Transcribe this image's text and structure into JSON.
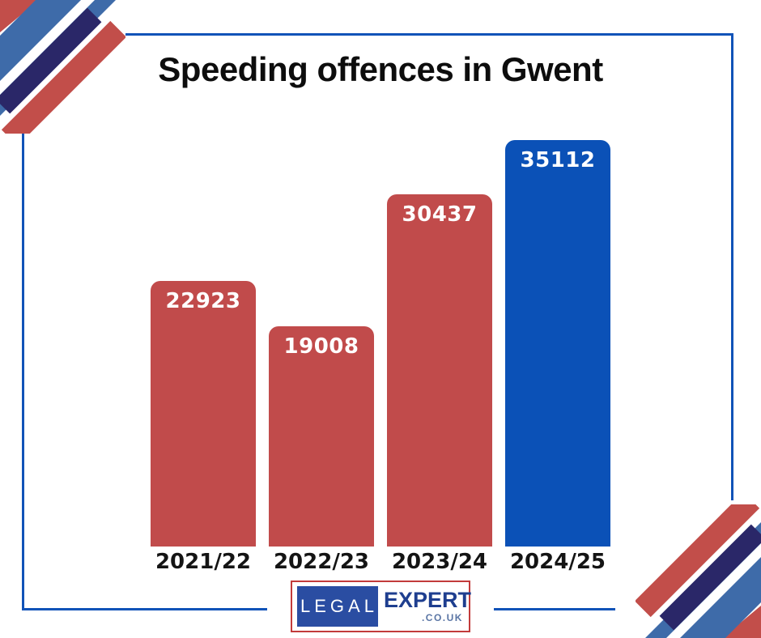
{
  "title": "Speeding offences in Gwent",
  "chart_data": {
    "type": "bar",
    "title": "Speeding offences in Gwent",
    "categories": [
      "2021/22",
      "2022/23",
      "2023/24",
      "2024/25"
    ],
    "values": [
      22923,
      19008,
      30437,
      35112
    ],
    "bar_colors": [
      "#c14b4b",
      "#c14b4b",
      "#c14b4b",
      "#0b51b7"
    ],
    "value_labels": [
      "22923",
      "19008",
      "30437",
      "35112"
    ],
    "value_label_position": "inside-top",
    "xlabel": "",
    "ylabel": "",
    "ylim": [
      0,
      35112
    ],
    "grid": false,
    "legend": false
  },
  "logo": {
    "legal": "LEGAL",
    "expert": "EXPERT",
    "domain": ".CO.UK"
  },
  "palette": {
    "frame_blue": "#1153b8",
    "bar_red": "#c14b4b",
    "bar_blue": "#0b51b7",
    "stripe_red": "#c24e4a",
    "stripe_steel_blue": "#3e6ba9",
    "stripe_navy": "#2a2768",
    "logo_red": "#c23b3b",
    "logo_blue_box": "#2a4da2",
    "logo_expert": "#1e3e8f",
    "logo_domain": "#5b76a5"
  }
}
